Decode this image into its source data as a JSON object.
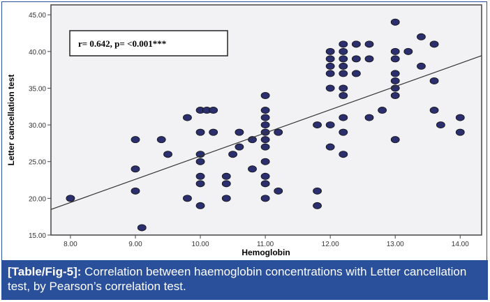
{
  "chart_data": {
    "type": "scatter",
    "title": "",
    "xlabel": "Hemoglobin",
    "ylabel": "Letter cancellation test",
    "xlim": [
      7.7,
      14.33
    ],
    "ylim": [
      15,
      46.35
    ],
    "x_ticks": [
      "8.00",
      "9.00",
      "10.00",
      "11.00",
      "12.00",
      "13.00",
      "14.00"
    ],
    "x_tick_values": [
      8,
      9,
      10,
      11,
      12,
      13,
      14
    ],
    "y_ticks": [
      "15.00",
      "20.00",
      "25.00",
      "30.00",
      "35.00",
      "40.00",
      "45.00"
    ],
    "y_tick_values": [
      15,
      20,
      25,
      30,
      35,
      40,
      45
    ],
    "grid": false,
    "annotation": "r= 0.642, p= <0.001***",
    "fit_line": {
      "intercept": -5.85,
      "slope": 3.16
    },
    "points": [
      [
        8.0,
        20
      ],
      [
        9.0,
        28
      ],
      [
        9.0,
        24
      ],
      [
        9.0,
        21
      ],
      [
        9.1,
        16
      ],
      [
        9.4,
        28
      ],
      [
        9.5,
        26
      ],
      [
        9.8,
        31
      ],
      [
        9.8,
        20
      ],
      [
        10.0,
        32
      ],
      [
        10.0,
        29
      ],
      [
        10.0,
        26
      ],
      [
        10.0,
        25
      ],
      [
        10.0,
        23
      ],
      [
        10.0,
        22
      ],
      [
        10.0,
        19
      ],
      [
        10.1,
        32
      ],
      [
        10.2,
        32
      ],
      [
        10.2,
        29
      ],
      [
        10.4,
        23
      ],
      [
        10.4,
        22
      ],
      [
        10.4,
        20
      ],
      [
        10.5,
        26
      ],
      [
        10.6,
        29
      ],
      [
        10.6,
        27
      ],
      [
        10.8,
        28
      ],
      [
        10.8,
        24
      ],
      [
        11.0,
        34
      ],
      [
        11.0,
        32
      ],
      [
        11.0,
        31
      ],
      [
        11.0,
        30
      ],
      [
        11.0,
        29
      ],
      [
        11.0,
        28
      ],
      [
        11.0,
        27
      ],
      [
        11.0,
        25
      ],
      [
        11.0,
        23
      ],
      [
        11.0,
        22
      ],
      [
        11.0,
        20
      ],
      [
        11.2,
        29
      ],
      [
        11.2,
        21
      ],
      [
        11.8,
        30
      ],
      [
        11.8,
        21
      ],
      [
        11.8,
        19
      ],
      [
        12.0,
        40
      ],
      [
        12.0,
        39
      ],
      [
        12.0,
        38
      ],
      [
        12.0,
        37
      ],
      [
        12.0,
        35
      ],
      [
        12.0,
        30
      ],
      [
        12.0,
        27
      ],
      [
        12.2,
        41
      ],
      [
        12.2,
        40
      ],
      [
        12.2,
        39
      ],
      [
        12.2,
        38
      ],
      [
        12.2,
        37
      ],
      [
        12.2,
        35
      ],
      [
        12.2,
        34
      ],
      [
        12.2,
        31
      ],
      [
        12.2,
        29
      ],
      [
        12.2,
        26
      ],
      [
        12.4,
        41
      ],
      [
        12.4,
        39
      ],
      [
        12.4,
        37
      ],
      [
        12.6,
        41
      ],
      [
        12.6,
        39
      ],
      [
        12.6,
        31
      ],
      [
        12.8,
        32
      ],
      [
        13.0,
        44
      ],
      [
        13.0,
        40
      ],
      [
        13.0,
        39
      ],
      [
        13.0,
        37
      ],
      [
        13.0,
        36
      ],
      [
        13.0,
        35
      ],
      [
        13.0,
        34
      ],
      [
        13.0,
        28
      ],
      [
        13.2,
        40
      ],
      [
        13.4,
        42
      ],
      [
        13.4,
        38
      ],
      [
        13.6,
        41
      ],
      [
        13.6,
        36
      ],
      [
        13.6,
        32
      ],
      [
        13.7,
        30
      ],
      [
        14.0,
        31
      ],
      [
        14.0,
        29
      ]
    ],
    "colors": {
      "point": "#2b2f6e",
      "line": "#333333",
      "plot_bg": "#f2f2f5"
    }
  },
  "caption": {
    "label": "[Table/Fig-5]:",
    "text": " Correlation between haemoglobin concentrations with Letter cancellation test, by Pearson’s correlation test."
  }
}
